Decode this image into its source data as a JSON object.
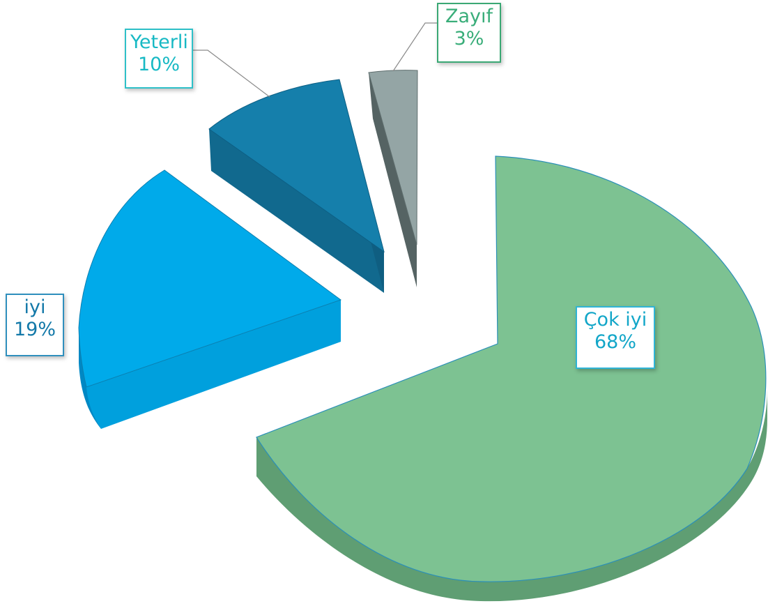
{
  "chart_data": {
    "type": "pie",
    "variant": "3d-exploded",
    "legend": "none",
    "slices": [
      {
        "label": "Çok iyi",
        "value": 68,
        "value_label": "68%",
        "color": "#7dc292",
        "side_color": "#5f9e73",
        "label_color": "#12a6c8",
        "border": "#2fb4d6"
      },
      {
        "label": "iyi",
        "value": 19,
        "value_label": "19%",
        "color": "#00aaea",
        "side_color": "#0088c4",
        "label_color": "#1278a8",
        "border": "#2f8fbd"
      },
      {
        "label": "Yeterli",
        "value": 10,
        "value_label": "10%",
        "color": "#157fab",
        "side_color": "#11698e",
        "label_color": "#17b9c4",
        "border": "#2ec0c8"
      },
      {
        "label": "Zayıf",
        "value": 3,
        "value_label": "3%",
        "color": "#94a5a5",
        "side_color": "#556363",
        "label_color": "#39ad79",
        "border": "#3aa874"
      }
    ]
  }
}
